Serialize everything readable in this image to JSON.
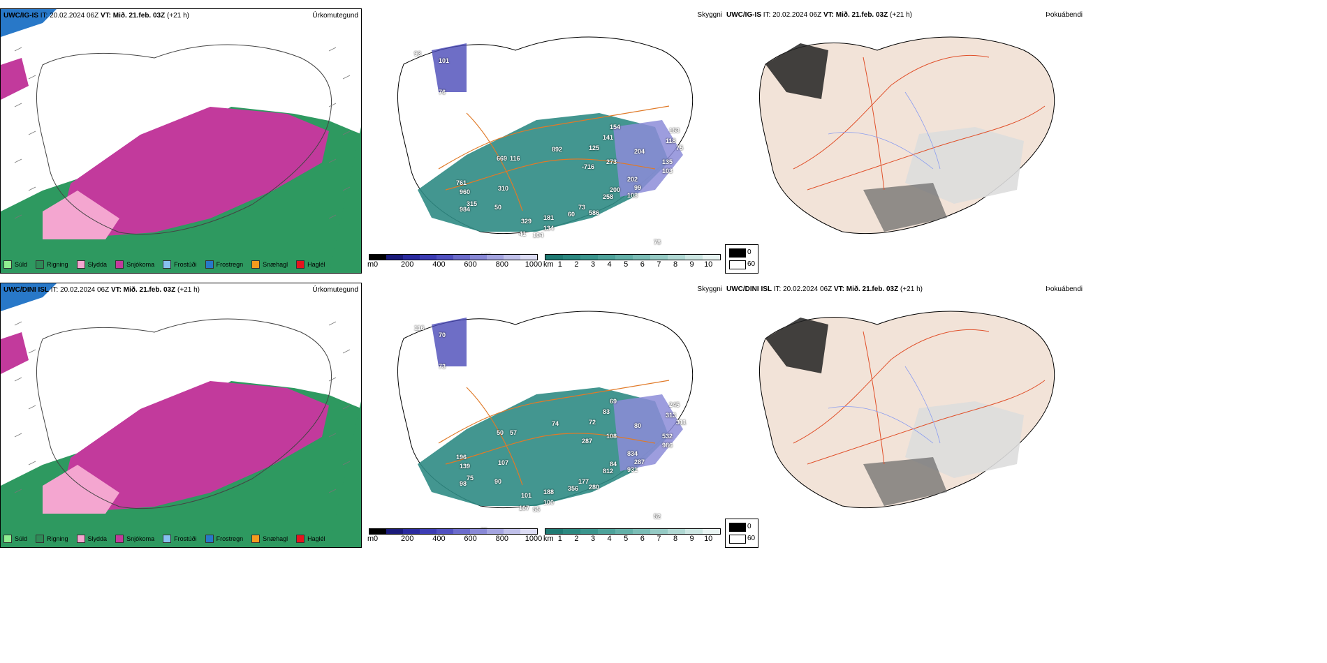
{
  "rows": [
    {
      "model_header": {
        "model": "UWC/IG-IS",
        "it": "IT: 20.02.2024 06Z",
        "vt_label": "VT:",
        "vt": "Mið. 21.feb. 03Z",
        "lead": "(+21 h)"
      },
      "titles": {
        "precip": "Úrkomutegund",
        "visibility": "Skyggni",
        "fog": "Þokuábendi"
      },
      "visibility_numbers": [
        "93",
        "101",
        "76",
        "154",
        "141",
        "125",
        "892",
        "669",
        "116",
        "273",
        "-716",
        "204",
        "153",
        "118",
        "75",
        "135",
        "103",
        "202",
        "99",
        "108",
        "200",
        "258",
        "761",
        "960",
        "315",
        "984",
        "310",
        "50",
        "181",
        "329",
        "41",
        "104",
        "134",
        "60",
        "73",
        "586",
        "78",
        "107"
      ]
    },
    {
      "model_header": {
        "model": "UWC/DINI ISL",
        "it": "IT: 20.02.2024 06Z",
        "vt_label": "VT:",
        "vt": "Mið. 21.feb. 03Z",
        "lead": "(+21 h)"
      },
      "titles": {
        "precip": "Úrkomutegund",
        "visibility": "Skyggni",
        "fog": "Þokuábendi"
      },
      "visibility_numbers": [
        "116",
        "70",
        "73",
        "69",
        "83",
        "72",
        "74",
        "50",
        "57",
        "108",
        "287",
        "80",
        "245",
        "313",
        "311",
        "532",
        "986",
        "834",
        "287",
        "931",
        "84",
        "812",
        "196",
        "139",
        "75",
        "98",
        "107",
        "90",
        "188",
        "101",
        "107",
        "55",
        "100",
        "356",
        "177",
        "280",
        "52",
        "75"
      ]
    }
  ],
  "precip_legend": [
    {
      "label": "Súld",
      "color": "#90ee90"
    },
    {
      "label": "Rigning",
      "color": "#2e8b57"
    },
    {
      "label": "Slydda",
      "color": "#f4a6d0"
    },
    {
      "label": "Snjókoma",
      "color": "#c23a9c"
    },
    {
      "label": "Frostúði",
      "color": "#87c1f0"
    },
    {
      "label": "Frostregn",
      "color": "#2878c8"
    },
    {
      "label": "Snæhagl",
      "color": "#f59b1e"
    },
    {
      "label": "Haglél",
      "color": "#e6141e"
    }
  ],
  "colorbar_height": {
    "unit": "m",
    "ticks": [
      "0",
      "200",
      "400",
      "600",
      "800",
      "1000"
    ],
    "colors": [
      "#000000",
      "#1a1a7a",
      "#2a2aa0",
      "#3c3cb4",
      "#5050c0",
      "#6c6ccc",
      "#8888d6",
      "#a4a4e0",
      "#c0c0ea",
      "#dcdcf4"
    ]
  },
  "colorbar_km": {
    "unit": "km",
    "ticks": [
      "1",
      "2",
      "3",
      "4",
      "5",
      "6",
      "7",
      "8",
      "9",
      "10"
    ],
    "colors": [
      "#1f7a73",
      "#2b8880",
      "#3a958d",
      "#4da29a",
      "#63b0a8",
      "#7bbdb6",
      "#95cac4",
      "#b0d8d3",
      "#cce6e2",
      "#e8f4f2"
    ]
  },
  "fog_key": {
    "values": [
      "0",
      "60"
    ],
    "colors": [
      "#000000",
      "#ffffff"
    ]
  },
  "colors": {
    "iceland_land": "#f2e3d8",
    "roads": "#e0502a",
    "rivers": "#8a9cf0",
    "ocean_rain": "#2e9960",
    "snow": "#c23a9c",
    "sleet": "#f4a6d0"
  }
}
